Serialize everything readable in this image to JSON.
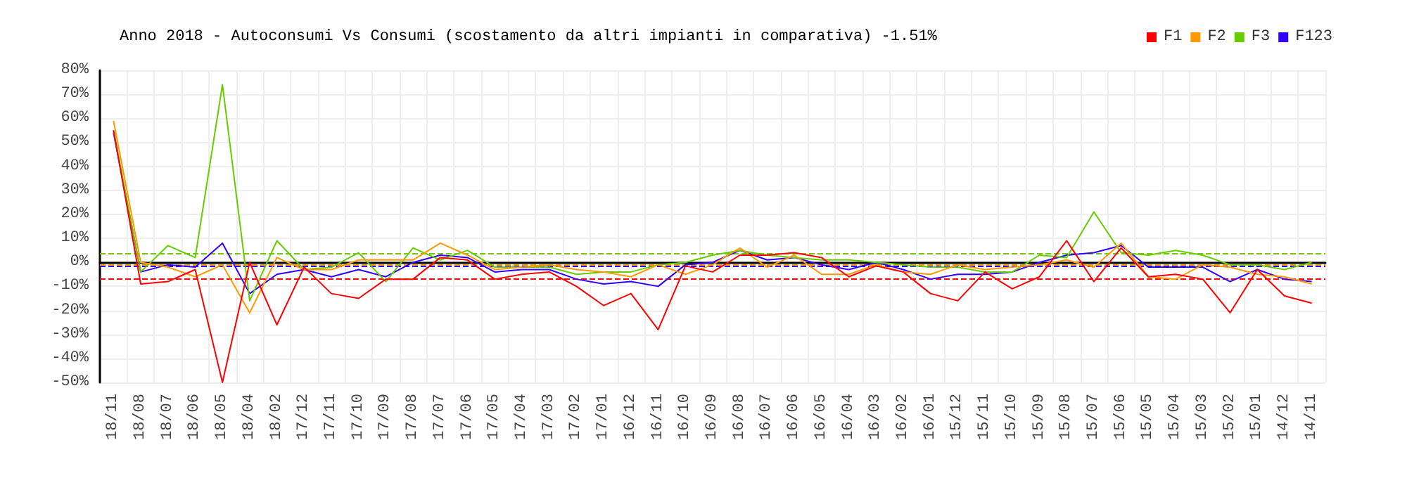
{
  "chart_data": {
    "type": "line",
    "title": "Anno 2018 - Autoconsumi Vs Consumi (scostamento da altri impianti in comparativa) -1.51%",
    "categories": [
      "18/11",
      "18/08",
      "18/07",
      "18/06",
      "18/05",
      "18/04",
      "18/02",
      "17/12",
      "17/11",
      "17/10",
      "17/09",
      "17/08",
      "17/07",
      "17/06",
      "17/05",
      "17/04",
      "17/03",
      "17/02",
      "17/01",
      "16/12",
      "16/11",
      "16/10",
      "16/09",
      "16/08",
      "16/07",
      "16/06",
      "16/05",
      "16/04",
      "16/03",
      "16/02",
      "16/01",
      "15/12",
      "15/11",
      "15/10",
      "15/09",
      "15/08",
      "15/07",
      "15/06",
      "15/05",
      "15/04",
      "15/03",
      "15/02",
      "15/01",
      "14/12",
      "14/11"
    ],
    "series": [
      {
        "name": "F1",
        "color": "#ff0000",
        "values": [
          55,
          -9,
          -8,
          -3,
          -50,
          0,
          -26,
          -2,
          -13,
          -15,
          -7,
          -7,
          2,
          1,
          -7,
          -5,
          -4,
          -10,
          -18,
          -13,
          -28,
          -1.5,
          -4,
          3,
          3,
          4,
          2,
          -6,
          -1.5,
          -4,
          -13,
          -16,
          -4,
          -11,
          -6,
          9,
          -8,
          6,
          -6,
          -5,
          -7,
          -21,
          -3,
          -14,
          -17
        ]
      },
      {
        "name": "F2",
        "color": "#ff9900",
        "values": [
          59,
          0,
          -2,
          -6,
          -1,
          -21,
          2,
          -3,
          -3,
          1,
          1,
          1,
          8,
          3,
          -3,
          -2,
          -1,
          -3,
          -4,
          -6,
          -1,
          -5,
          -1,
          6,
          -2,
          3,
          -5,
          -5,
          -1,
          -4,
          -5,
          -1,
          -3,
          -2,
          -1,
          1,
          -2,
          8,
          -6,
          -7,
          -1,
          -2,
          -5,
          -6,
          -9
        ]
      },
      {
        "name": "F3",
        "color": "#66cc00",
        "values": [
          55,
          -4,
          7,
          2,
          74,
          -16,
          9,
          -3,
          -2,
          4,
          -8,
          6,
          1,
          5,
          -2,
          -2,
          -2,
          -5,
          -4,
          -4,
          -1,
          0,
          3,
          5,
          3,
          2,
          1,
          1,
          0,
          -1,
          -2,
          -2,
          -4,
          -4,
          3,
          2,
          21,
          4,
          3,
          5,
          3,
          -1,
          -1,
          -3,
          0
        ]
      },
      {
        "name": "F123",
        "color": "#3300ff",
        "values": [
          54,
          -4,
          -1,
          -2,
          8,
          -13,
          -5,
          -3,
          -6,
          -3,
          -6,
          0,
          3,
          2,
          -4,
          -3,
          -3,
          -7,
          -9,
          -8,
          -10,
          -1,
          0,
          5,
          1,
          2,
          -1,
          -3,
          0,
          -3,
          -7,
          -5,
          -5,
          -4,
          0,
          3,
          4,
          7,
          -2,
          -2,
          -2,
          -8,
          -3,
          -7,
          -8
        ]
      }
    ],
    "ylim": [
      -50,
      80
    ],
    "yticks": [
      {
        "value": -50,
        "label": "-50%"
      },
      {
        "value": -40,
        "label": "-40%"
      },
      {
        "value": -30,
        "label": "-30%"
      },
      {
        "value": -20,
        "label": "-20%"
      },
      {
        "value": -10,
        "label": "-10%"
      },
      {
        "value": 0,
        "label": "0%"
      },
      {
        "value": 10,
        "label": "10%"
      },
      {
        "value": 20,
        "label": "20%"
      },
      {
        "value": 30,
        "label": "30%"
      },
      {
        "value": 40,
        "label": "40%"
      },
      {
        "value": 50,
        "label": "50%"
      },
      {
        "value": 60,
        "label": "60%"
      },
      {
        "value": 70,
        "label": "70%"
      },
      {
        "value": 80,
        "label": "80%"
      }
    ],
    "ref_lines": [
      {
        "axis": "y",
        "value": -7,
        "color": "#ff0000",
        "line_style": "dashed"
      },
      {
        "axis": "y",
        "value": -1,
        "color": "#ff9900",
        "line_style": "dashed"
      },
      {
        "axis": "y",
        "value": 3.5,
        "color": "#66cc00",
        "line_style": "dashed"
      },
      {
        "axis": "y",
        "value": -1.5,
        "color": "#3300ff",
        "line_style": "dashed"
      }
    ],
    "grid": true,
    "legend": "top right",
    "marker": "none",
    "line_style": "solid"
  }
}
